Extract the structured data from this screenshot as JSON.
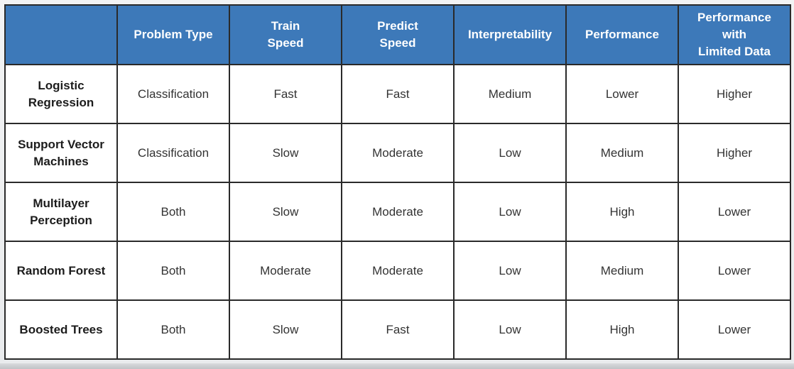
{
  "table": {
    "headers": [
      "",
      "Problem Type",
      "Train\nSpeed",
      "Predict\nSpeed",
      "Interpretability",
      "Performance",
      "Performance\nwith\nLimited Data"
    ],
    "rows": [
      {
        "name": "Logistic\nRegression",
        "problem_type": "Classification",
        "train_speed": "Fast",
        "predict_speed": "Fast",
        "interpretability": "Medium",
        "performance": "Lower",
        "limited_data": "Higher"
      },
      {
        "name": "Support Vector\nMachines",
        "problem_type": "Classification",
        "train_speed": "Slow",
        "predict_speed": "Moderate",
        "interpretability": "Low",
        "performance": "Medium",
        "limited_data": "Higher"
      },
      {
        "name": "Multilayer\nPerception",
        "problem_type": "Both",
        "train_speed": "Slow",
        "predict_speed": "Moderate",
        "interpretability": "Low",
        "performance": "High",
        "limited_data": "Lower"
      },
      {
        "name": "Random Forest",
        "problem_type": "Both",
        "train_speed": "Moderate",
        "predict_speed": "Moderate",
        "interpretability": "Low",
        "performance": "Medium",
        "limited_data": "Lower"
      },
      {
        "name": "Boosted Trees",
        "problem_type": "Both",
        "train_speed": "Slow",
        "predict_speed": "Fast",
        "interpretability": "Low",
        "performance": "High",
        "limited_data": "Lower"
      }
    ]
  },
  "colors": {
    "header_bg": "#3d79b9",
    "fast": "#6fb34e",
    "slow": "#d8453c",
    "moderate": "#e8c04a",
    "low": "#d8453c",
    "lower": "#e9887f",
    "high": "#5ab44b",
    "higher": "#a8d58e"
  }
}
